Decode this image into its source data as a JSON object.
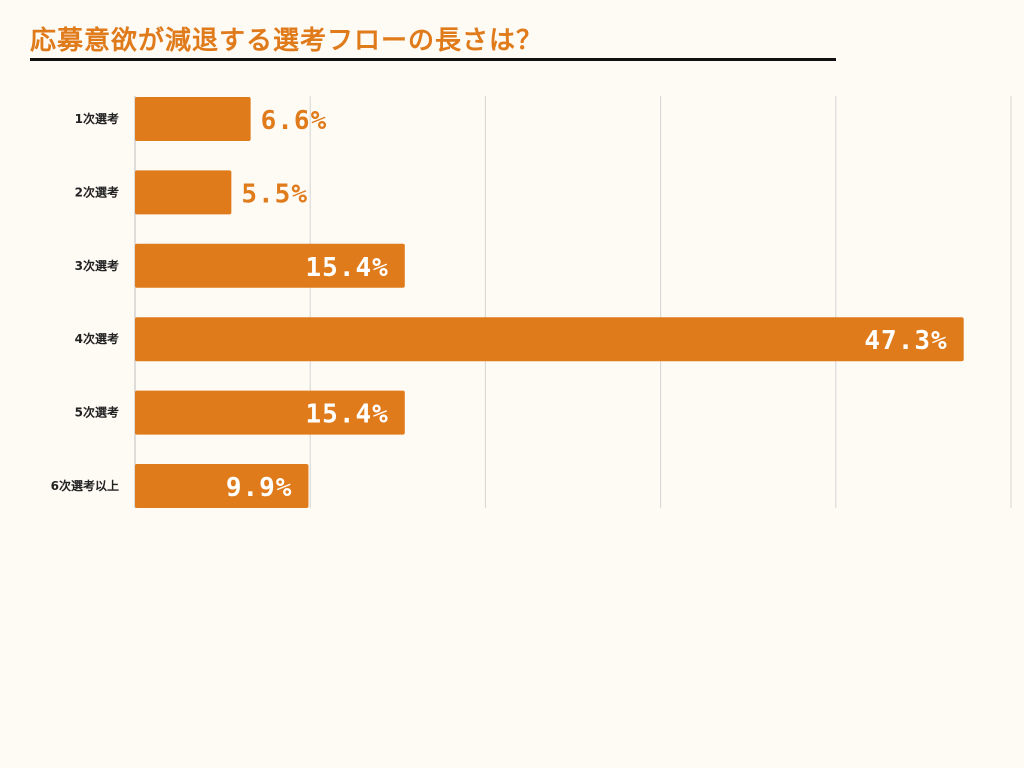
{
  "chart_data": {
    "type": "bar",
    "orientation": "horizontal",
    "title": "応募意欲が減退する選考フローの長さは？",
    "categories": [
      "1次選考",
      "2次選考",
      "3次選考",
      "4次選考",
      "5次選考",
      "6次選考以上"
    ],
    "values": [
      6.6,
      5.5,
      15.4,
      47.3,
      15.4,
      9.9
    ],
    "value_labels": [
      "6.6%",
      "5.5%",
      "15.4%",
      "47.3%",
      "15.4%",
      "9.9%"
    ],
    "xlim": [
      0,
      50
    ],
    "grid": true,
    "bar_color": "#e07b1c",
    "label_color_outside": "#e07b1c",
    "label_color_inside": "#ffffff"
  }
}
